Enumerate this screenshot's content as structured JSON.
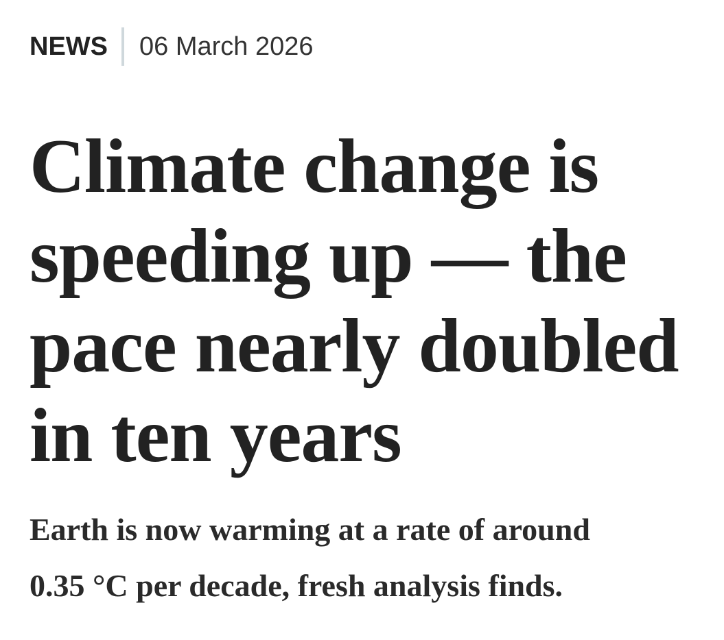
{
  "header": {
    "section": "NEWS",
    "date": "06 March 2026"
  },
  "headline": {
    "lines": [
      "Climate change is",
      "speeding up — the",
      "pace nearly doubled",
      "in ten years"
    ]
  },
  "standfirst": {
    "lines": [
      "Earth is now warming at a rate of around",
      "0.35 °C per decade, fresh analysis finds."
    ]
  }
}
